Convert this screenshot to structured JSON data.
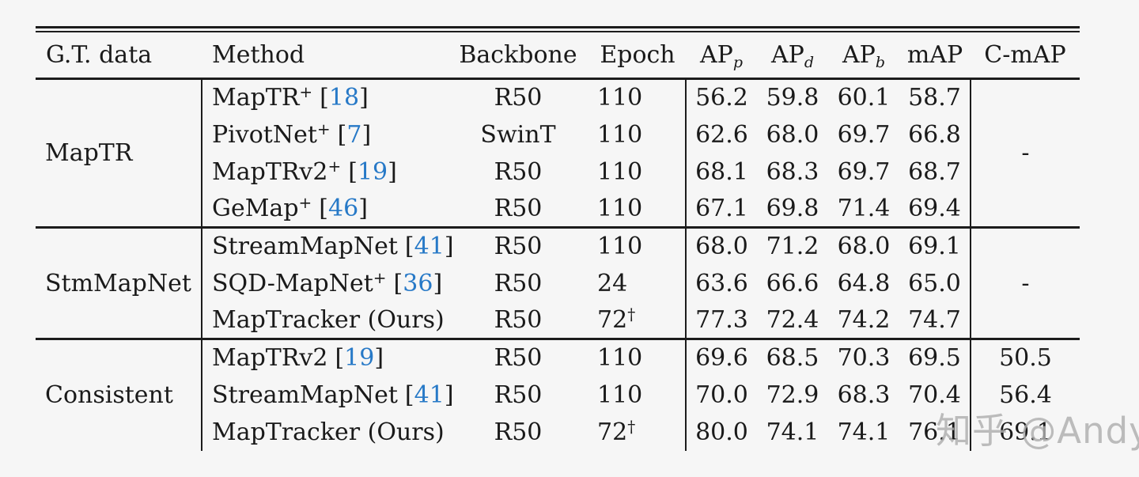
{
  "colors": {
    "background": "#f6f6f6",
    "text": "#1a1a1a",
    "rule": "#1c1c1c",
    "citation_blue": "#2779c7",
    "watermark_gray": "#afafaf"
  },
  "watermark": {
    "text": "知乎 @Andy"
  },
  "table": {
    "header": {
      "gt_data": "G.T. data",
      "method": "Method",
      "backbone": "Backbone",
      "epoch": "Epoch",
      "ap_p_base": "AP",
      "ap_p_sub": "p",
      "ap_d_base": "AP",
      "ap_d_sub": "d",
      "ap_b_base": "AP",
      "ap_b_sub": "b",
      "map": "mAP",
      "cmap": "C-mAP"
    },
    "groups": [
      {
        "gt_data": "MapTR",
        "cmap_merged": "-",
        "rows": [
          {
            "method": "MapTR",
            "method_sup": "+",
            "cite_open": "[",
            "cite": "18",
            "cite_close": "]",
            "backbone": "R50",
            "epoch": "110",
            "ap_p": "56.2",
            "ap_d": "59.8",
            "ap_b": "60.1",
            "map": "58.7"
          },
          {
            "method": "PivotNet",
            "method_sup": "+",
            "cite_open": "[",
            "cite": "7",
            "cite_close": "]",
            "backbone": "SwinT",
            "epoch": "110",
            "ap_p": "62.6",
            "ap_d": "68.0",
            "ap_b": "69.7",
            "map": "66.8"
          },
          {
            "method": "MapTRv2",
            "method_sup": "+",
            "cite_open": "[",
            "cite": "19",
            "cite_close": "]",
            "backbone": "R50",
            "epoch": "110",
            "ap_p": "68.1",
            "ap_d": "68.3",
            "ap_b": "69.7",
            "map": "68.7"
          },
          {
            "method": "GeMap",
            "method_sup": "+",
            "cite_open": "[",
            "cite": "46",
            "cite_close": "]",
            "backbone": "R50",
            "epoch": "110",
            "ap_p": "67.1",
            "ap_d": "69.8",
            "ap_b": "71.4",
            "map": "69.4"
          }
        ]
      },
      {
        "gt_data": "StmMapNet",
        "cmap_merged": "-",
        "rows": [
          {
            "method": "StreamMapNet",
            "cite_open": "[",
            "cite": "41",
            "cite_close": "]",
            "backbone": "R50",
            "epoch": "110",
            "ap_p": "68.0",
            "ap_d": "71.2",
            "ap_b": "68.0",
            "map": "69.1"
          },
          {
            "method": "SQD-MapNet",
            "method_sup": "+",
            "cite_open": "[",
            "cite": "36",
            "cite_close": "]",
            "backbone": "R50",
            "epoch": "24",
            "ap_p": "63.6",
            "ap_d": "66.6",
            "ap_b": "64.8",
            "map": "65.0"
          },
          {
            "method": "MapTracker (Ours)",
            "backbone": "R50",
            "epoch": "72",
            "epoch_sup": "†",
            "ap_p": "77.3",
            "ap_d": "72.4",
            "ap_b": "74.2",
            "map": "74.7"
          }
        ]
      },
      {
        "gt_data": "Consistent",
        "rows": [
          {
            "method": "MapTRv2",
            "cite_open": "[",
            "cite": "19",
            "cite_close": "]",
            "backbone": "R50",
            "epoch": "110",
            "ap_p": "69.6",
            "ap_d": "68.5",
            "ap_b": "70.3",
            "map": "69.5",
            "cmap": "50.5"
          },
          {
            "method": "StreamMapNet",
            "cite_open": "[",
            "cite": "41",
            "cite_close": "]",
            "backbone": "R50",
            "epoch": "110",
            "ap_p": "70.0",
            "ap_d": "72.9",
            "ap_b": "68.3",
            "map": "70.4",
            "cmap": "56.4"
          },
          {
            "method": "MapTracker (Ours)",
            "backbone": "R50",
            "epoch": "72",
            "epoch_sup": "†",
            "ap_p": "80.0",
            "ap_d": "74.1",
            "ap_b": "74.1",
            "map": "76.1",
            "cmap": "69.1"
          }
        ]
      }
    ]
  }
}
